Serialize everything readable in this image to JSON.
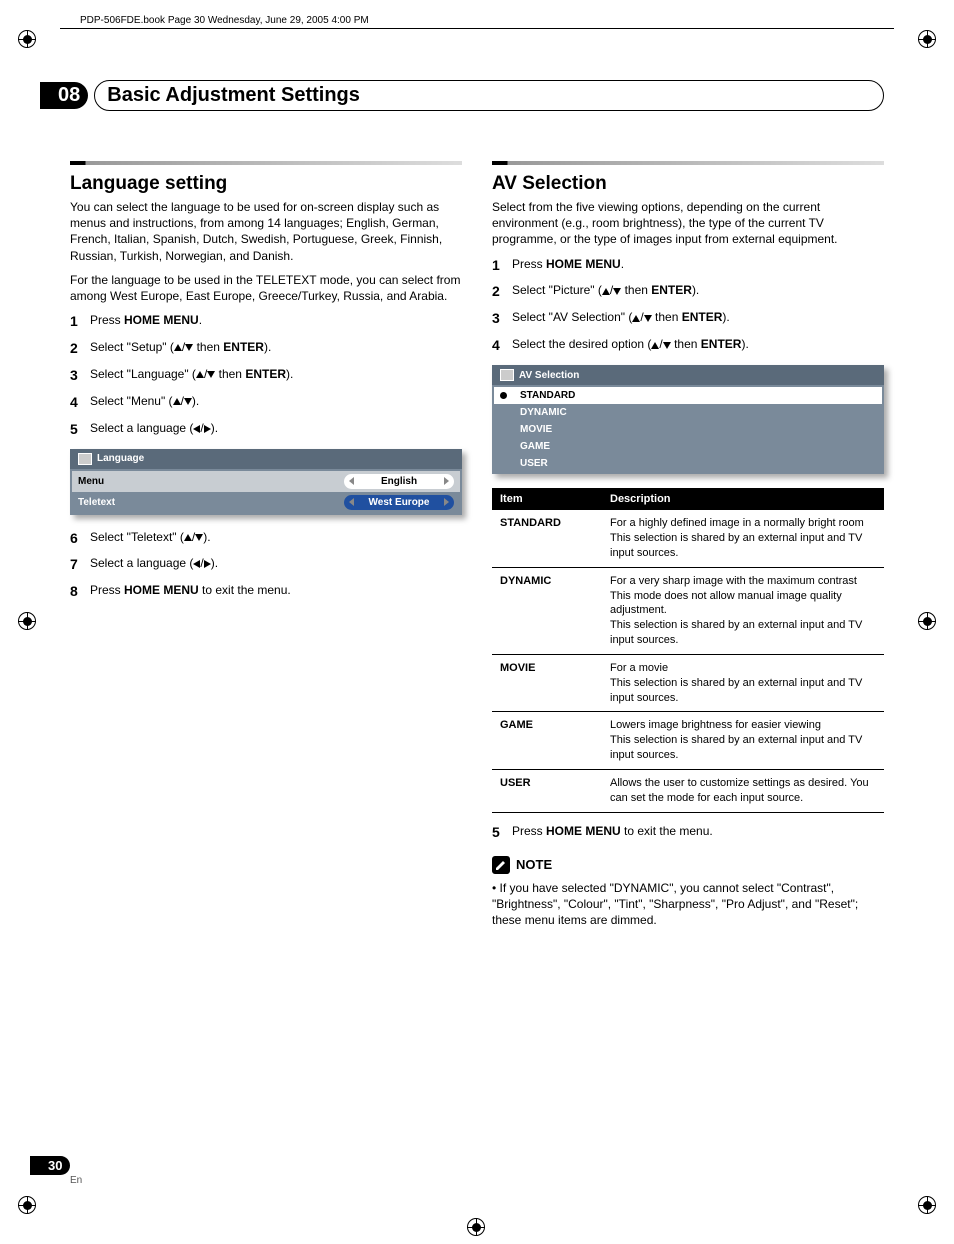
{
  "header_line": "PDP-506FDE.book  Page 30  Wednesday, June 29, 2005  4:00 PM",
  "chapter": {
    "number": "08",
    "title": "Basic Adjustment Settings"
  },
  "left": {
    "heading": "Language setting",
    "intro1": "You can select the language to be used for on-screen display such as menus and instructions, from among 14 languages; English, German, French, Italian, Spanish, Dutch, Swedish, Portuguese, Greek, Finnish, Russian, Turkish, Norwegian, and Danish.",
    "intro2": "For the language to be used in the TELETEXT mode, you can select from among West Europe, East Europe, Greece/Turkey, Russia, and Arabia.",
    "steps": [
      {
        "n": "1",
        "pre": "Press ",
        "bold": "HOME MENU",
        "post": "."
      },
      {
        "n": "2",
        "pre": "Select \"Setup\" (",
        "arrows": "ud",
        "mid": " then ",
        "bold": "ENTER",
        "post": ")."
      },
      {
        "n": "3",
        "pre": "Select \"Language\" (",
        "arrows": "ud",
        "mid": " then ",
        "bold": "ENTER",
        "post": ")."
      },
      {
        "n": "4",
        "pre": "Select \"Menu\" (",
        "arrows": "ud",
        "post": ")."
      },
      {
        "n": "5",
        "pre": "Select a language (",
        "arrows": "lr",
        "post": ")."
      }
    ],
    "osd": {
      "title": "Language",
      "rows": [
        {
          "label": "Menu",
          "value": "English",
          "selected": true
        },
        {
          "label": "Teletext",
          "value": "West Europe",
          "selected": false
        }
      ]
    },
    "steps2": [
      {
        "n": "6",
        "pre": "Select \"Teletext\" (",
        "arrows": "ud",
        "post": ")."
      },
      {
        "n": "7",
        "pre": "Select a language (",
        "arrows": "lr",
        "post": ")."
      },
      {
        "n": "8",
        "pre": "Press ",
        "bold": "HOME MENU",
        "post": " to exit the menu."
      }
    ]
  },
  "right": {
    "heading": "AV Selection",
    "intro": "Select from the five viewing options, depending on the current environment (e.g., room brightness), the type of the current TV programme, or the type of images input from external equipment.",
    "steps": [
      {
        "n": "1",
        "pre": "Press ",
        "bold": "HOME MENU",
        "post": "."
      },
      {
        "n": "2",
        "pre": "Select \"Picture\" (",
        "arrows": "ud",
        "mid": " then ",
        "bold": "ENTER",
        "post": ")."
      },
      {
        "n": "3",
        "pre": "Select \"AV Selection\" (",
        "arrows": "ud",
        "mid": " then ",
        "bold": "ENTER",
        "post": ")."
      },
      {
        "n": "4",
        "pre": "Select the desired option (",
        "arrows": "ud",
        "mid": " then ",
        "bold": "ENTER",
        "post": ")."
      }
    ],
    "osd": {
      "title": "AV Selection",
      "items": [
        {
          "label": "STANDARD",
          "active": true
        },
        {
          "label": "DYNAMIC",
          "active": false
        },
        {
          "label": "MOVIE",
          "active": false
        },
        {
          "label": "GAME",
          "active": false
        },
        {
          "label": "USER",
          "active": false
        }
      ]
    },
    "table": {
      "head_item": "Item",
      "head_desc": "Description",
      "rows": [
        {
          "item": "STANDARD",
          "desc": "For a highly defined image in a normally bright room\nThis selection is shared by an external input and TV input sources."
        },
        {
          "item": "DYNAMIC",
          "desc": "For a very sharp image with the maximum contrast\nThis mode does not allow manual image quality adjustment.\nThis selection is shared by an external input and TV input sources."
        },
        {
          "item": "MOVIE",
          "desc": "For a movie\nThis selection is shared by an external input and TV input sources."
        },
        {
          "item": "GAME",
          "desc": "Lowers image brightness for easier viewing\nThis selection is shared by an external input and TV input sources."
        },
        {
          "item": "USER",
          "desc": "Allows the user to customize settings as desired. You can set the mode for each input source."
        }
      ]
    },
    "step5": {
      "n": "5",
      "pre": "Press ",
      "bold": "HOME MENU",
      "post": " to exit the menu."
    },
    "note_title": "NOTE",
    "note_body": "If you have selected \"DYNAMIC\", you cannot select \"Contrast\", \"Brightness\", \"Colour\", \"Tint\", \"Sharpness\", \"Pro Adjust\", and \"Reset\"; these menu items are dimmed."
  },
  "footer": {
    "page": "30",
    "lang": "En"
  }
}
